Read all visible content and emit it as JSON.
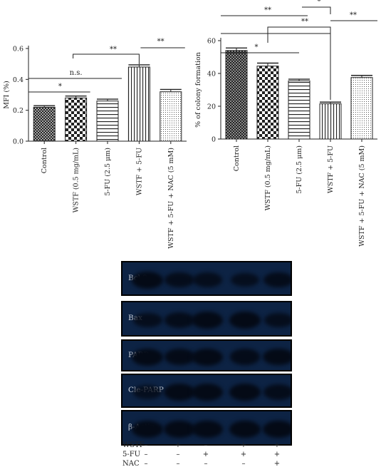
{
  "chart_data": [
    {
      "type": "bar",
      "ylabel": "MFI (%)",
      "ylim": [
        0,
        0.6
      ],
      "yticks": [
        "0.0",
        "0.2",
        "0.4",
        "0.6"
      ],
      "categories": [
        "Control",
        "WSTF (0.5 mg/mL)",
        "5-FU (2.5 μm)",
        "WSTF + 5-FU",
        "WSTF + 5-FU + NAC (5 mM)"
      ],
      "values": [
        0.22,
        0.28,
        0.26,
        0.48,
        0.32
      ],
      "errors": [
        0.01,
        0.012,
        0.012,
        0.014,
        0.015
      ],
      "significance": [
        "**",
        "n.s.",
        "*",
        "**"
      ]
    },
    {
      "type": "bar",
      "ylabel": "% of colony formation",
      "ylim": [
        0,
        60
      ],
      "yticks": [
        "0",
        "20",
        "40",
        "60"
      ],
      "categories": [
        "Control",
        "WSTF (0.5 mg/mL)",
        "5-FU (2.5 μm)",
        "WSTF + 5-FU",
        "WSTF + 5-FU + NAC (5 mM)"
      ],
      "values": [
        54,
        44.5,
        35.5,
        21.5,
        37.5
      ],
      "errors": [
        1.5,
        1.8,
        1.0,
        1.0,
        1.3
      ],
      "significance": [
        "**",
        "*",
        "**",
        "**",
        "*",
        "**"
      ]
    }
  ],
  "blot": {
    "proteins": [
      "Bcl-2",
      "Bax",
      "PARP",
      "Cle-PARP",
      "β-Actin"
    ],
    "conditions": [
      {
        "name": "WSTF",
        "signs": [
          "–",
          "+",
          "–",
          "+",
          "+"
        ]
      },
      {
        "name": "5-FU",
        "signs": [
          "–",
          "–",
          "+",
          "+",
          "+"
        ]
      },
      {
        "name": "NAC",
        "signs": [
          "–",
          "–",
          "–",
          "–",
          "+"
        ]
      }
    ],
    "band_intensity": [
      [
        1.0,
        0.75,
        0.7,
        0.6,
        0.8
      ],
      [
        0.7,
        0.8,
        1.0,
        1.0,
        0.7
      ],
      [
        1.0,
        0.9,
        1.0,
        0.85,
        0.95
      ],
      [
        0.6,
        1.0,
        1.0,
        1.0,
        0.8
      ],
      [
        1.0,
        1.0,
        1.0,
        1.0,
        1.0
      ]
    ]
  },
  "colors": {
    "axis": "#222222",
    "bar_stroke": "#222222",
    "blot_bg": "#0d2344",
    "band": "#040a16"
  }
}
